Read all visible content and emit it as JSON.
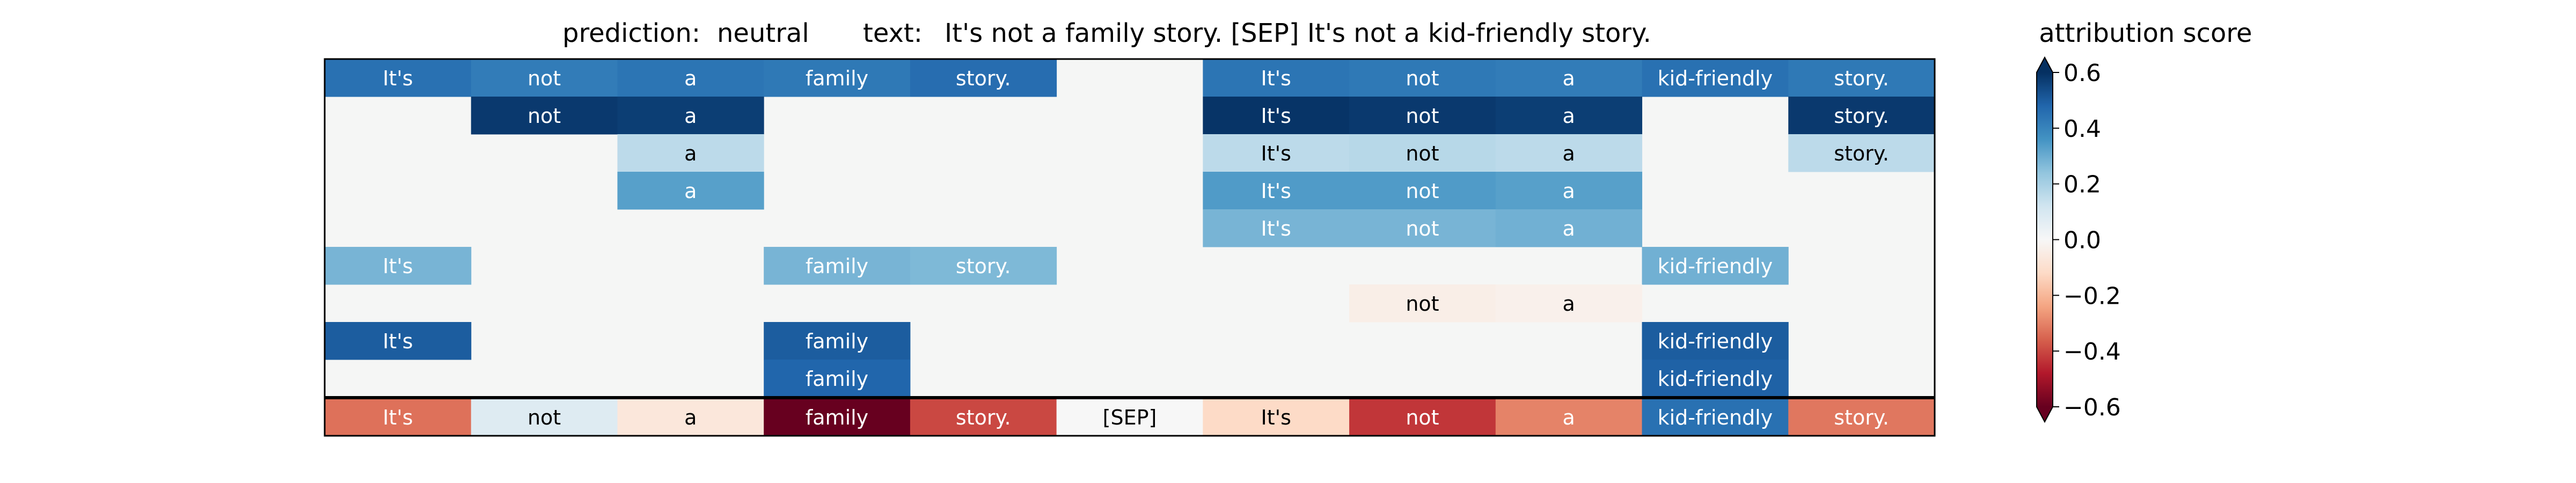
{
  "chart_data": {
    "type": "heatmap",
    "title": {
      "prediction_label": "prediction:",
      "prediction_value": "neutral",
      "text_label": "text:",
      "text_value": "It's not a family story. [SEP] It's not a kid-friendly story."
    },
    "tokens": [
      "It's",
      "not",
      "a",
      "family",
      "story.",
      "[SEP]",
      "It's",
      "not",
      "a",
      "kid-friendly",
      "story."
    ],
    "grid": [
      [
        0.45,
        0.42,
        0.44,
        0.43,
        0.46,
        0,
        0.44,
        0.43,
        0.42,
        0.45,
        0.43
      ],
      [
        0,
        0.58,
        0.57,
        0,
        0,
        0,
        0.59,
        0.58,
        0.57,
        0,
        0.58
      ],
      [
        0,
        0,
        0.16,
        0,
        0,
        0,
        0.16,
        0.17,
        0.16,
        0,
        0.16
      ],
      [
        0,
        0,
        0.33,
        0,
        0,
        0,
        0.34,
        0.34,
        0.33,
        0,
        0
      ],
      [
        0,
        0,
        0,
        0,
        0,
        0,
        0.28,
        0.28,
        0.29,
        0,
        0
      ],
      [
        0.28,
        0,
        0,
        0.28,
        0.27,
        0,
        0,
        0,
        0,
        0.29,
        0
      ],
      [
        0,
        0,
        0,
        0,
        0,
        0,
        0,
        -0.04,
        -0.03,
        0,
        0
      ],
      [
        0.5,
        0,
        0,
        0.5,
        0,
        0,
        0,
        0,
        0,
        0.5,
        0
      ],
      [
        0,
        0,
        0,
        0.48,
        0,
        0,
        0,
        0,
        0,
        0.49,
        0
      ]
    ],
    "score_row": [
      -0.33,
      0.08,
      -0.07,
      -0.6,
      -0.4,
      0,
      -0.12,
      -0.43,
      -0.3,
      0.45,
      -0.32
    ],
    "colorbar": {
      "title": "attribution score",
      "colormap": "RdBu",
      "vmin": -0.6,
      "vmax": 0.6,
      "ticks": [
        0.6,
        0.4,
        0.2,
        0.0,
        -0.2,
        -0.4,
        -0.6
      ],
      "tick_labels": [
        "0.6",
        "0.4",
        "0.2",
        "0.0",
        "−0.2",
        "−0.4",
        "−0.6"
      ],
      "extend": "both"
    },
    "background_color": "#f5f6f5",
    "border_color": "#000000"
  }
}
